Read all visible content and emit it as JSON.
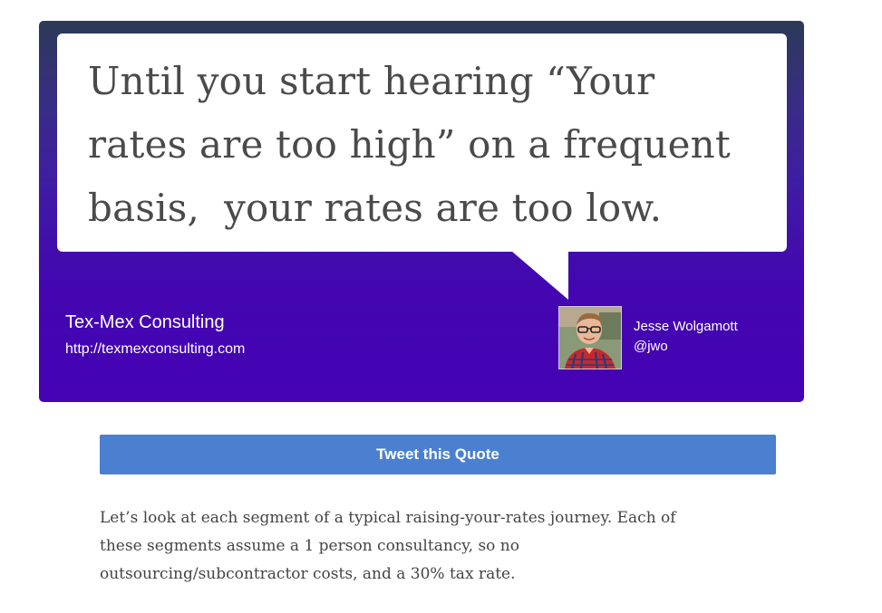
{
  "quote": {
    "lines": [
      "Until you start hearing “Your",
      "rates are too high” on a frequent",
      "basis,  your rates are too low."
    ]
  },
  "company": {
    "name": "Tex-Mex Consulting",
    "url": "http://texmexconsulting.com"
  },
  "author": {
    "name": "Jesse Wolgamott",
    "handle": "@jwo",
    "avatar_icon": "person-photo"
  },
  "tweet_button": {
    "label": "Tweet this Quote"
  },
  "body": {
    "paragraph_lines": [
      "Let’s look at each segment of a typical raising-your-rates journey. Each of",
      "these segments assume a 1 person consultancy, so no",
      "outsourcing/subcontractor costs, and a 30% tax rate."
    ]
  },
  "colors": {
    "card_top": "#2a3a56",
    "card_bottom": "#4503b4",
    "button": "#4a80cf"
  }
}
